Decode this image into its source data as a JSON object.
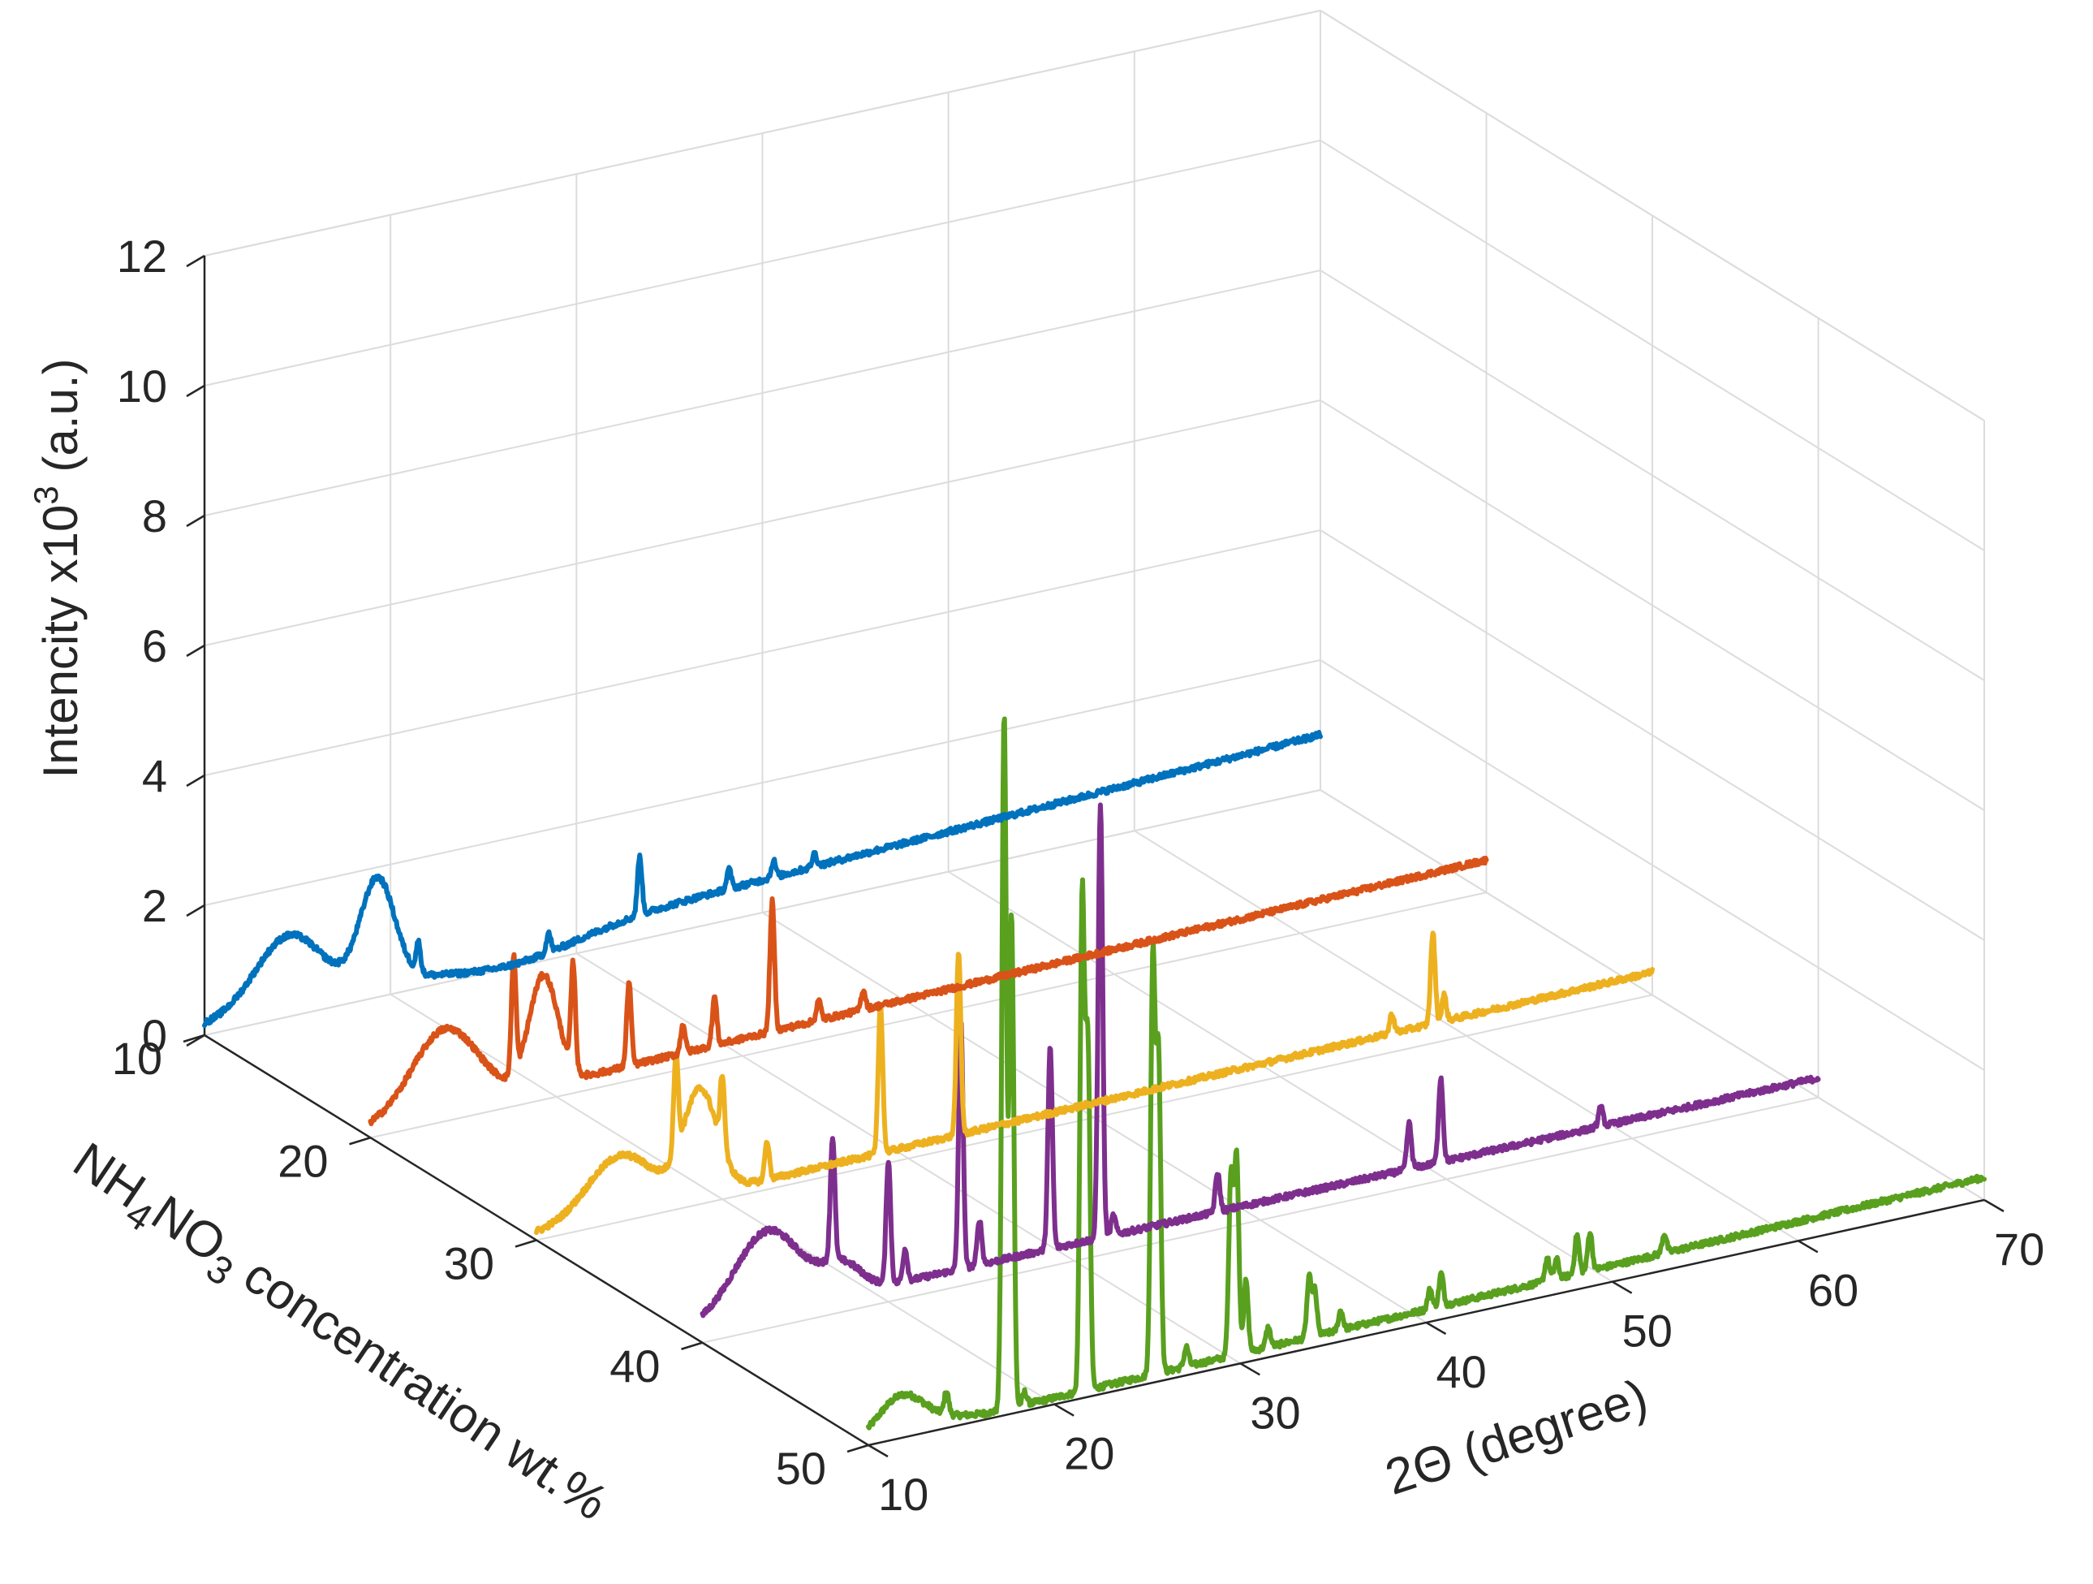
{
  "chart_data": {
    "type": "line",
    "view": "3d-waterfall",
    "title": "",
    "xlabel": {
      "main": "2Θ (degree)"
    },
    "ylabel": {
      "prefix": "NH",
      "sub1": "4",
      "mid": "NO",
      "sub2": "3",
      "suffix": " concentration wt.%"
    },
    "zlabel": {
      "prefix": "Intencity x10",
      "sup": "3",
      "suffix": " (a.u.)"
    },
    "xlim": [
      10,
      70
    ],
    "ylim": [
      10,
      50
    ],
    "zlim": [
      0,
      12
    ],
    "x_ticks": [
      "10",
      "20",
      "30",
      "40",
      "50",
      "60",
      "70"
    ],
    "y_ticks": [
      "10",
      "20",
      "30",
      "40",
      "50"
    ],
    "z_ticks": [
      "0",
      "2",
      "4",
      "6",
      "8",
      "10",
      "12"
    ],
    "grid": true,
    "series": [
      {
        "name": "10 wt.%",
        "concentration": 10,
        "color": "#0072BD",
        "base_start": 0.15,
        "base_end": 0.85,
        "humps": [
          [
            14.5,
            1.05,
            2.5
          ],
          [
            19.3,
            1.6,
            1.3
          ],
          [
            26.5,
            -0.3,
            5.0
          ]
        ],
        "peaks": [
          [
            21.5,
            0.45
          ],
          [
            28.5,
            0.3
          ],
          [
            33.4,
            0.9
          ],
          [
            38.2,
            0.3
          ],
          [
            40.6,
            0.25
          ],
          [
            42.8,
            0.2
          ]
        ]
      },
      {
        "name": "20 wt.%",
        "concentration": 20,
        "color": "#D95319",
        "base_start": 0.15,
        "base_end": 0.5,
        "humps": [
          [
            14.0,
            1.25,
            2.5
          ],
          [
            19.3,
            1.7,
            1.1
          ]
        ],
        "peaks": [
          [
            17.7,
            1.8
          ],
          [
            20.9,
            1.6
          ],
          [
            23.9,
            1.3
          ],
          [
            26.8,
            0.45
          ],
          [
            28.5,
            0.75
          ],
          [
            31.6,
            2.0
          ],
          [
            34.1,
            0.3
          ],
          [
            36.5,
            0.3
          ]
        ]
      },
      {
        "name": "30 wt.%",
        "concentration": 30,
        "color": "#EDB120",
        "base_start": 0.1,
        "base_end": 0.35,
        "humps": [
          [
            14.5,
            0.9,
            2.5
          ],
          [
            18.8,
            1.6,
            1.3
          ]
        ],
        "peaks": [
          [
            17.5,
            1.5
          ],
          [
            20.0,
            1.1
          ],
          [
            22.4,
            0.6
          ],
          [
            28.5,
            2.3
          ],
          [
            32.7,
            2.8
          ],
          [
            58.2,
            1.4
          ],
          [
            58.8,
            0.4
          ],
          [
            56.0,
            0.3
          ]
        ]
      },
      {
        "name": "40 wt.%",
        "concentration": 40,
        "color": "#7E2F8E",
        "base_start": 0.25,
        "base_end": 0.3,
        "humps": [
          [
            13.5,
            1.25,
            2.5
          ],
          [
            17.5,
            0.45,
            1.5
          ]
        ],
        "peaks": [
          [
            17.0,
            1.9
          ],
          [
            20.0,
            1.9
          ],
          [
            20.9,
            0.5
          ],
          [
            23.9,
            3.8
          ],
          [
            24.9,
            0.7
          ],
          [
            28.7,
            3.1
          ],
          [
            31.4,
            6.7
          ],
          [
            32.1,
            0.3
          ],
          [
            37.7,
            0.6
          ],
          [
            48.0,
            0.7
          ],
          [
            49.7,
            1.3
          ],
          [
            58.3,
            0.3
          ]
        ]
      },
      {
        "name": "50 wt.%",
        "concentration": 50,
        "color": "#59A01F",
        "base_start": 0.05,
        "base_end": 0.35,
        "humps": [
          [
            11.8,
            0.6,
            1.8
          ],
          [
            14.7,
            0.05,
            1.4
          ]
        ],
        "peaks": [
          [
            14.2,
            0.35
          ],
          [
            17.3,
            10.7
          ],
          [
            17.7,
            7.6
          ],
          [
            18.4,
            0.2
          ],
          [
            21.5,
            7.6
          ],
          [
            21.8,
            5.3
          ],
          [
            25.3,
            6.4
          ],
          [
            25.6,
            4.9
          ],
          [
            27.1,
            0.3
          ],
          [
            29.5,
            2.8
          ],
          [
            29.8,
            3.0
          ],
          [
            30.3,
            1.1
          ],
          [
            31.5,
            0.3
          ],
          [
            33.7,
            0.9
          ],
          [
            34.0,
            0.7
          ],
          [
            35.4,
            0.3
          ],
          [
            40.2,
            0.3
          ],
          [
            40.8,
            0.5
          ],
          [
            46.5,
            0.35
          ],
          [
            47.0,
            0.3
          ],
          [
            48.1,
            0.6
          ],
          [
            48.8,
            0.6
          ],
          [
            52.8,
            0.3
          ]
        ]
      }
    ]
  }
}
